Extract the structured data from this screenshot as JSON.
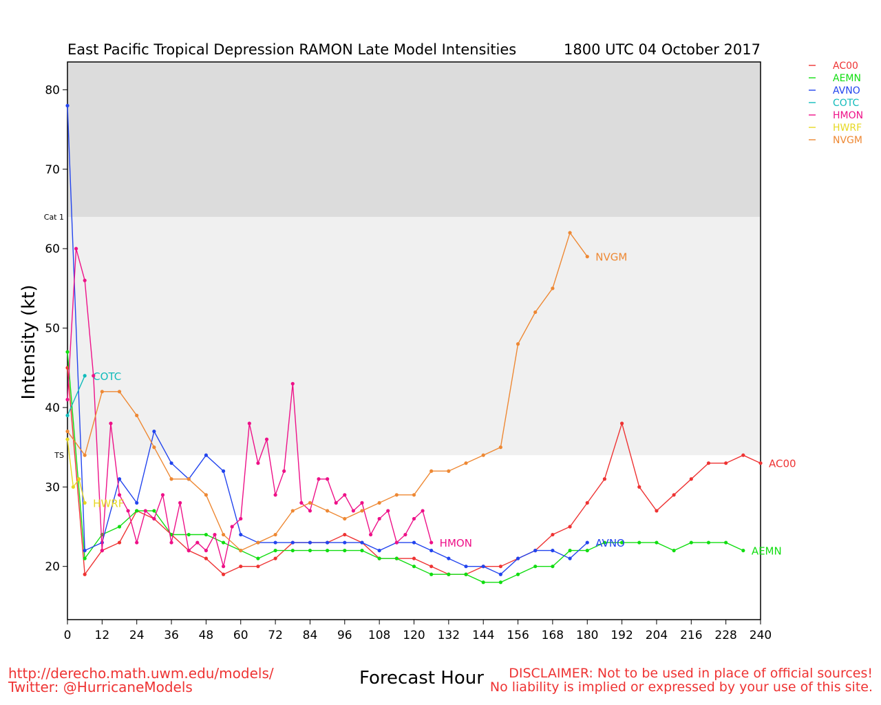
{
  "chart_data": {
    "type": "line",
    "title": "East Pacific Tropical Depression RAMON Late Model Intensities",
    "subtitle": "1800 UTC 04 October 2017",
    "xlabel": "Forecast Hour",
    "ylabel": "Intensity (kt)",
    "xlim": [
      0,
      240
    ],
    "ylim": [
      13.3,
      83.5
    ],
    "xticks": [
      0,
      12,
      24,
      36,
      48,
      60,
      72,
      84,
      96,
      108,
      120,
      132,
      144,
      156,
      168,
      180,
      192,
      204,
      216,
      228,
      240
    ],
    "yticks": [
      20,
      30,
      40,
      50,
      60,
      70,
      80
    ],
    "bands": [
      {
        "label": "Cat 1",
        "from": 64,
        "to": 83.5,
        "color": "#dcdcdc"
      },
      {
        "label": "TS",
        "from": 34,
        "to": 64,
        "color": "#f0f0f0"
      }
    ],
    "series": [
      {
        "name": "AC00",
        "color": "#ee3333",
        "x": [
          0,
          6,
          12,
          18,
          24,
          30,
          36,
          42,
          48,
          54,
          60,
          66,
          72,
          78,
          84,
          90,
          96,
          102,
          108,
          114,
          120,
          126,
          132,
          138,
          144,
          150,
          156,
          162,
          168,
          174,
          180,
          186,
          192,
          198,
          204,
          210,
          216,
          222,
          228,
          234,
          240
        ],
        "values": [
          45,
          19,
          22,
          23,
          27,
          26,
          24,
          22,
          21,
          19,
          20,
          20,
          21,
          23,
          23,
          23,
          24,
          23,
          21,
          21,
          21,
          20,
          19,
          19,
          20,
          20,
          21,
          22,
          24,
          25,
          28,
          31,
          38,
          30,
          27,
          29,
          31,
          33,
          33,
          34,
          33
        ],
        "end_label": "AC00"
      },
      {
        "name": "AEMN",
        "color": "#11dd11",
        "x": [
          0,
          6,
          12,
          18,
          24,
          30,
          36,
          42,
          48,
          54,
          60,
          66,
          72,
          78,
          84,
          90,
          96,
          102,
          108,
          114,
          120,
          126,
          132,
          138,
          144,
          150,
          156,
          162,
          168,
          174,
          180,
          186,
          192,
          198,
          204,
          210,
          216,
          222,
          228,
          234
        ],
        "values": [
          47,
          21,
          24,
          25,
          27,
          27,
          24,
          24,
          24,
          23,
          22,
          21,
          22,
          22,
          22,
          22,
          22,
          22,
          21,
          21,
          20,
          19,
          19,
          19,
          18,
          18,
          19,
          20,
          20,
          22,
          22,
          23,
          23,
          23,
          23,
          22,
          23,
          23,
          23,
          22
        ],
        "end_label": "AEMN"
      },
      {
        "name": "AVNO",
        "color": "#2244ee",
        "x": [
          0,
          6,
          12,
          18,
          24,
          30,
          36,
          42,
          48,
          54,
          60,
          66,
          72,
          78,
          84,
          90,
          96,
          102,
          108,
          114,
          120,
          126,
          132,
          138,
          144,
          150,
          156,
          162,
          168,
          174,
          180
        ],
        "values": [
          78,
          22,
          23,
          31,
          28,
          37,
          33,
          31,
          34,
          32,
          24,
          23,
          23,
          23,
          23,
          23,
          23,
          23,
          22,
          23,
          23,
          22,
          21,
          20,
          20,
          19,
          21,
          22,
          22,
          21,
          23
        ],
        "end_label": "AVNO"
      },
      {
        "name": "COTC",
        "color": "#11bbbb",
        "x": [
          0,
          6
        ],
        "values": [
          39,
          44
        ],
        "end_label": "COTC"
      },
      {
        "name": "HMON",
        "color": "#ee1188",
        "x": [
          0,
          3,
          6,
          9,
          12,
          15,
          18,
          21,
          24,
          27,
          30,
          33,
          36,
          39,
          42,
          45,
          48,
          51,
          54,
          57,
          60,
          63,
          66,
          69,
          72,
          75,
          78,
          81,
          84,
          87,
          90,
          93,
          96,
          99,
          102,
          105,
          108,
          111,
          114,
          117,
          120,
          123,
          126
        ],
        "values": [
          41,
          60,
          56,
          44,
          22,
          38,
          29,
          27,
          23,
          27,
          26,
          29,
          23,
          28,
          22,
          23,
          22,
          24,
          20,
          25,
          26,
          38,
          33,
          36,
          29,
          32,
          43,
          28,
          27,
          31,
          31,
          28,
          29,
          27,
          28,
          24,
          26,
          27,
          23,
          24,
          26,
          27,
          23
        ],
        "end_label": "HMON"
      },
      {
        "name": "HWRF",
        "color": "#e6d822",
        "x": [
          0,
          2,
          4,
          6
        ],
        "values": [
          36,
          30,
          31,
          28
        ],
        "end_label": "HWRF"
      },
      {
        "name": "NVGM",
        "color": "#ee8833",
        "x": [
          0,
          6,
          12,
          18,
          24,
          30,
          36,
          42,
          48,
          54,
          60,
          66,
          72,
          78,
          84,
          90,
          96,
          102,
          108,
          114,
          120,
          126,
          132,
          138,
          144,
          150,
          156,
          162,
          168,
          174,
          180
        ],
        "values": [
          37,
          34,
          42,
          42,
          39,
          35,
          31,
          31,
          29,
          24,
          22,
          23,
          24,
          27,
          28,
          27,
          26,
          27,
          28,
          29,
          29,
          32,
          32,
          33,
          34,
          35,
          48,
          52,
          55,
          62,
          59
        ],
        "end_label": "NVGM"
      }
    ],
    "legend": "top-right"
  },
  "footer": {
    "url": "http://derecho.math.uwm.edu/models/",
    "twitter": "Twitter: @HurricaneModels",
    "disclaimer_1": "DISCLAIMER: Not to be used in place of official sources!",
    "disclaimer_2": "No liability is implied or expressed by your use of this site."
  }
}
